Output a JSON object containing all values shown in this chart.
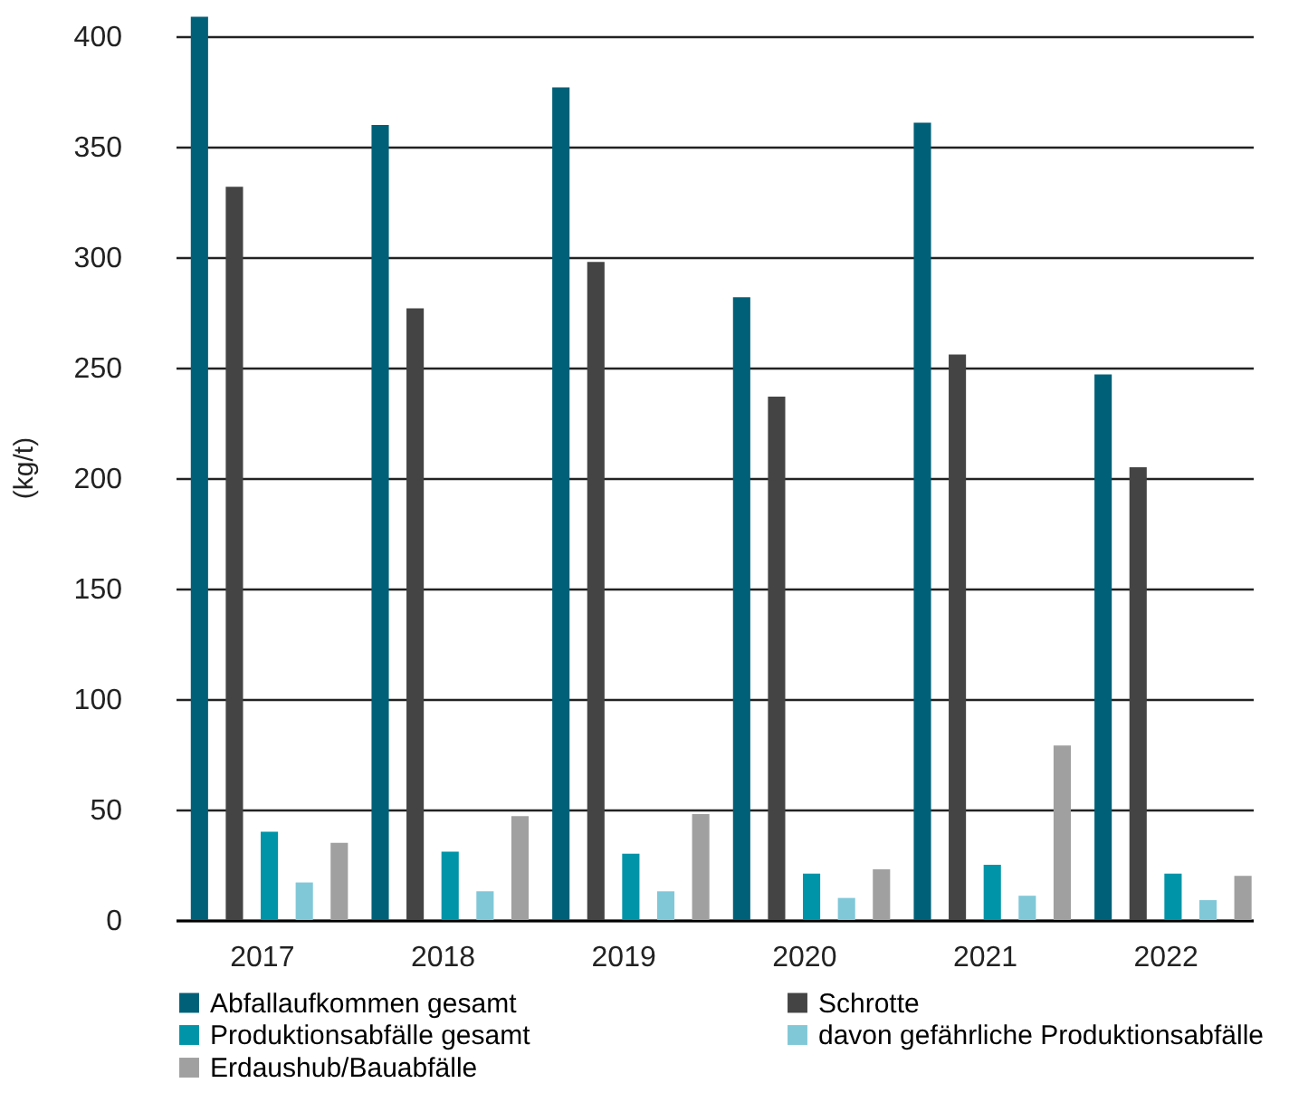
{
  "chart_data": {
    "type": "bar",
    "ylabel": "(kg/t)",
    "categories": [
      "2017",
      "2018",
      "2019",
      "2020",
      "2021",
      "2022"
    ],
    "series": [
      {
        "name": "Abfallaufkommen gesamt",
        "color": "#006078",
        "values": [
          409,
          360,
          377,
          282,
          361,
          247
        ]
      },
      {
        "name": "Schrotte",
        "color": "#444444",
        "values": [
          332,
          277,
          298,
          237,
          256,
          205
        ]
      },
      {
        "name": "Produktionsabfälle gesamt",
        "color": "#0094a8",
        "values": [
          40,
          31,
          30,
          21,
          25,
          21
        ]
      },
      {
        "name": "davon gefährliche Produktionsabfälle",
        "color": "#80c8d8",
        "values": [
          17,
          13,
          13,
          10,
          11,
          9
        ]
      },
      {
        "name": "Erdaushub/Bauabfälle",
        "color": "#a0a0a0",
        "values": [
          35,
          47,
          48,
          23,
          79,
          20
        ]
      }
    ],
    "ylim": [
      0,
      410
    ],
    "yticks": [
      0,
      50,
      100,
      150,
      200,
      250,
      300,
      350,
      400
    ],
    "grid": "y",
    "legend": "bottom"
  }
}
